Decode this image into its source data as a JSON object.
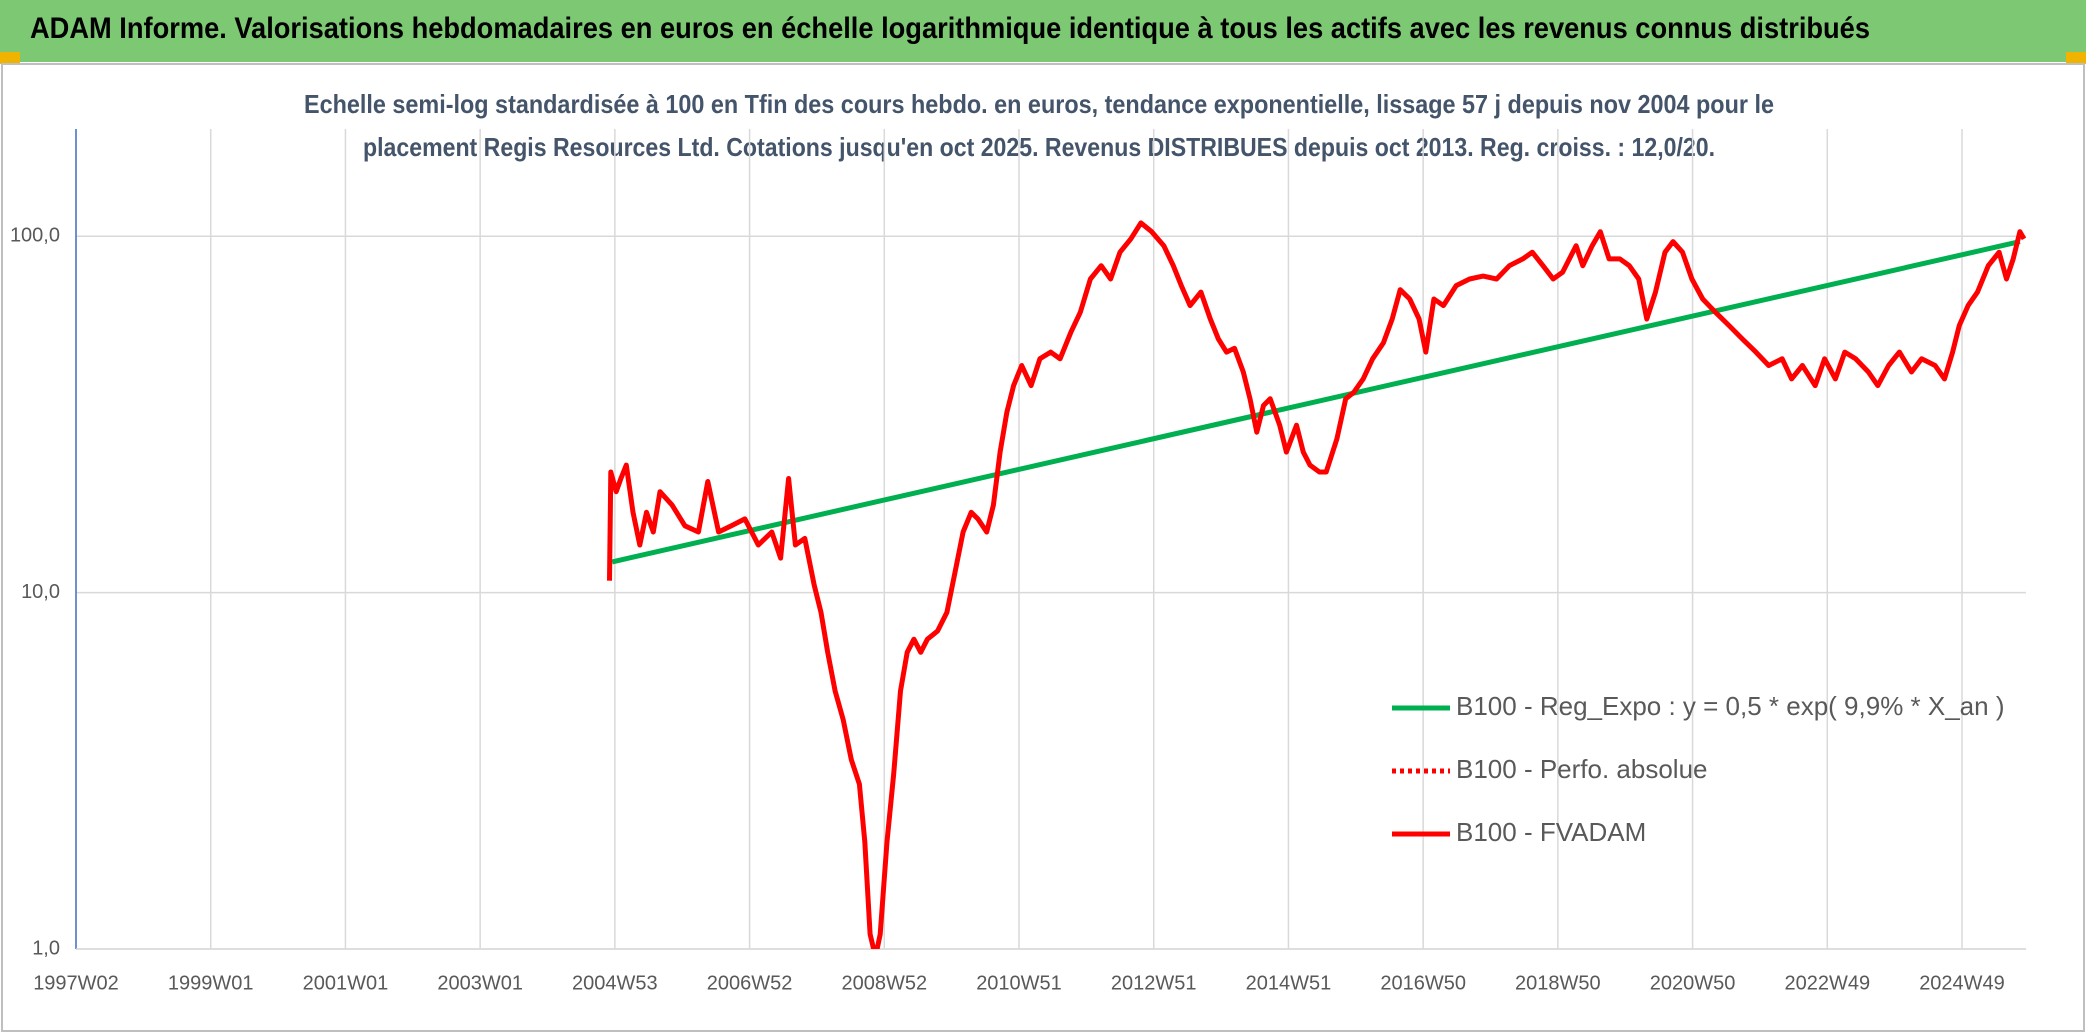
{
  "chart_data": {
    "type": "line",
    "title": "ADAM Informe. Valorisations hebdomadaires en euros en échelle logarithmique identique à tous les actifs avec les revenus connus distribués",
    "subtitle": [
      "Echelle semi-log standardisée à 100 en Tfin des cours hebdo. en euros, tendance exponentielle, lissage 57 j depuis nov 2004 pour le",
      "placement Regis Resources Ltd. Cotations jusqu'en oct 2025. Revenus DISTRIBUES depuis oct 2013. Reg. croiss. : 12,0/20."
    ],
    "xlim": [
      1997,
      2025.95
    ],
    "xticks": [
      {
        "value": 1997,
        "label": "1997W02"
      },
      {
        "value": 1999,
        "label": "1999W01"
      },
      {
        "value": 2001,
        "label": "2001W01"
      },
      {
        "value": 2003,
        "label": "2003W01"
      },
      {
        "value": 2005,
        "label": "2004W53"
      },
      {
        "value": 2007,
        "label": "2006W52"
      },
      {
        "value": 2009,
        "label": "2008W52"
      },
      {
        "value": 2011,
        "label": "2010W51"
      },
      {
        "value": 2013,
        "label": "2012W51"
      },
      {
        "value": 2015,
        "label": "2014W51"
      },
      {
        "value": 2017,
        "label": "2016W50"
      },
      {
        "value": 2019,
        "label": "2018W50"
      },
      {
        "value": 2021,
        "label": "2020W50"
      },
      {
        "value": 2023,
        "label": "2022W49"
      },
      {
        "value": 2025,
        "label": "2024W49"
      }
    ],
    "ylim": [
      1,
      200
    ],
    "yscale": "log",
    "yticks": [
      {
        "value": 1,
        "label": "1,0"
      },
      {
        "value": 10,
        "label": "10,0"
      },
      {
        "value": 100,
        "label": "100,0"
      }
    ],
    "grid": true,
    "legend": "right",
    "series": [
      {
        "name": "B100 - Reg_Expo : y = 0,5 * exp( 9,9% *  X_an )",
        "color": "#00b050",
        "style": "solid",
        "x": [
          2004.96,
          2025.86
        ],
        "values": [
          12.2,
          96.6
        ]
      },
      {
        "name": "B100 - Perfo. absolue",
        "color": "#ff0000",
        "style": "dotted",
        "x": [],
        "values": []
      },
      {
        "name": "B100 - FVADAM",
        "color": "#ff0000",
        "style": "solid",
        "x": [
          2004.92,
          2004.94,
          2005.02,
          2005.09,
          2005.17,
          2005.27,
          2005.37,
          2005.47,
          2005.57,
          2005.67,
          2005.85,
          2006.04,
          2006.24,
          2006.38,
          2006.54,
          2006.73,
          2006.93,
          2007.13,
          2007.33,
          2007.46,
          2007.58,
          2007.68,
          2007.82,
          2007.96,
          2008.06,
          2008.16,
          2008.27,
          2008.39,
          2008.51,
          2008.63,
          2008.71,
          2008.79,
          2008.87,
          2008.94,
          2009.04,
          2009.14,
          2009.24,
          2009.34,
          2009.44,
          2009.54,
          2009.64,
          2009.79,
          2009.93,
          2010.05,
          2010.17,
          2010.29,
          2010.39,
          2010.52,
          2010.62,
          2010.72,
          2010.82,
          2010.92,
          2011.04,
          2011.18,
          2011.31,
          2011.47,
          2011.61,
          2011.77,
          2011.91,
          2012.06,
          2012.22,
          2012.36,
          2012.5,
          2012.66,
          2012.81,
          2012.97,
          2013.15,
          2013.29,
          2013.41,
          2013.54,
          2013.7,
          2013.84,
          2013.96,
          2014.08,
          2014.2,
          2014.33,
          2014.43,
          2014.53,
          2014.63,
          2014.73,
          2014.87,
          2014.97,
          2015.12,
          2015.22,
          2015.32,
          2015.46,
          2015.56,
          2015.72,
          2015.85,
          2015.97,
          2016.11,
          2016.25,
          2016.41,
          2016.54,
          2016.66,
          2016.8,
          2016.94,
          2017.04,
          2017.16,
          2017.3,
          2017.49,
          2017.69,
          2017.89,
          2018.09,
          2018.28,
          2018.48,
          2018.62,
          2018.78,
          2018.93,
          2019.07,
          2019.27,
          2019.37,
          2019.51,
          2019.63,
          2019.76,
          2019.92,
          2020.06,
          2020.2,
          2020.32,
          2020.45,
          2020.59,
          2020.71,
          2020.85,
          2020.99,
          2021.15,
          2021.34,
          2021.54,
          2021.74,
          2021.94,
          2022.13,
          2022.33,
          2022.47,
          2022.63,
          2022.82,
          2022.96,
          2023.12,
          2023.26,
          2023.42,
          2023.61,
          2023.75,
          2023.91,
          2024.07,
          2024.25,
          2024.4,
          2024.6,
          2024.74,
          2024.86,
          2024.96,
          2025.09,
          2025.23,
          2025.39,
          2025.55,
          2025.66,
          2025.76,
          2025.86,
          2025.92
        ],
        "values": [
          10.8,
          21.8,
          19.2,
          20.9,
          22.8,
          16.8,
          13.6,
          16.8,
          14.8,
          19.2,
          17.6,
          15.4,
          14.8,
          20.5,
          14.8,
          15.4,
          16.1,
          13.6,
          14.8,
          12.5,
          20.9,
          13.6,
          14.2,
          10.5,
          8.8,
          6.8,
          5.3,
          4.4,
          3.4,
          2.9,
          2.0,
          1.1,
          0.95,
          1.1,
          2.0,
          3.1,
          5.3,
          6.8,
          7.4,
          6.8,
          7.4,
          7.8,
          8.8,
          11.4,
          14.8,
          16.8,
          16.1,
          14.8,
          17.6,
          24.8,
          32.1,
          38.1,
          43.4,
          38.1,
          45.3,
          47.3,
          45.3,
          53.8,
          61.2,
          75.9,
          82.7,
          75.9,
          90.2,
          98.3,
          109,
          103,
          94.1,
          82.7,
          72.7,
          63.9,
          69.7,
          58.6,
          51.5,
          47.3,
          48.5,
          41.6,
          35.0,
          28.2,
          33.5,
          35.0,
          29.5,
          24.8,
          29.5,
          24.8,
          22.8,
          21.8,
          21.8,
          27.0,
          35.0,
          36.5,
          39.8,
          45.3,
          50.2,
          58.6,
          70.8,
          66.7,
          58.6,
          47.3,
          66.7,
          63.9,
          72.7,
          75.9,
          77.3,
          75.9,
          82.7,
          86.4,
          90.2,
          82.7,
          75.9,
          79.3,
          94.1,
          82.7,
          94.1,
          103,
          86.4,
          86.4,
          82.7,
          75.9,
          58.6,
          69.7,
          90.2,
          96.6,
          90.2,
          75.9,
          66.7,
          61.2,
          56.2,
          51.5,
          47.3,
          43.4,
          45.3,
          39.8,
          43.4,
          38.1,
          45.3,
          39.8,
          47.3,
          45.3,
          41.6,
          38.1,
          43.4,
          47.3,
          41.6,
          45.3,
          43.4,
          39.8,
          47.3,
          56.2,
          63.9,
          69.7,
          82.7,
          90.2,
          75.9,
          86.4,
          103,
          98.3
        ]
      }
    ]
  }
}
